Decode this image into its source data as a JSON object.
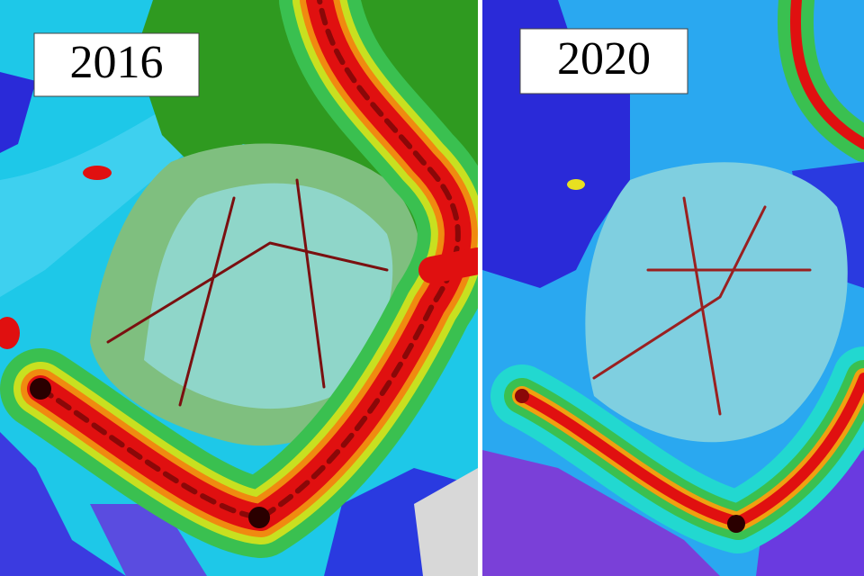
{
  "panels": [
    {
      "label": "2016"
    },
    {
      "label": "2020"
    }
  ]
}
